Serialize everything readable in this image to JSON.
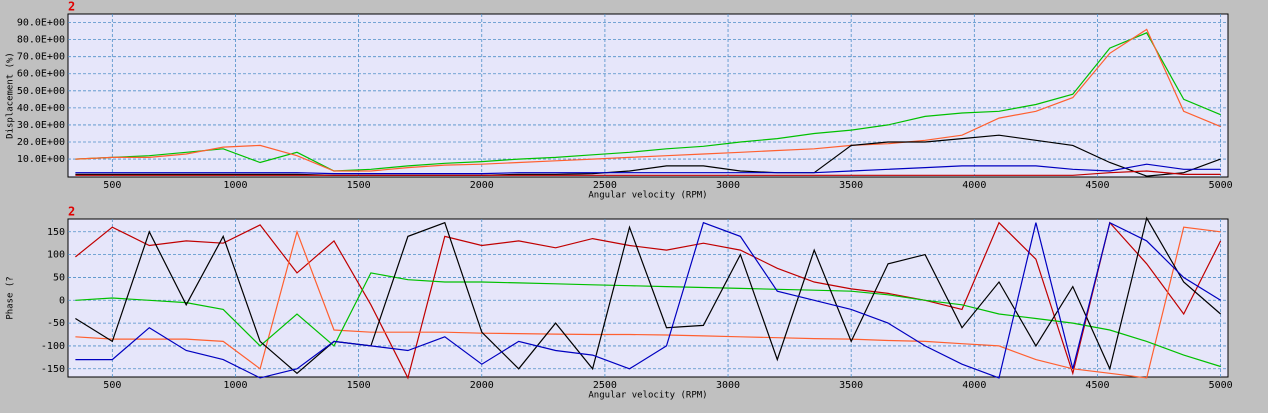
{
  "chart_data": [
    {
      "type": "line",
      "corner_label": "2",
      "xlabel": "Angular velocity (RPM)",
      "ylabel": "Displacement (%)",
      "xlim": [
        320,
        5030
      ],
      "ylim": [
        -0.5,
        95
      ],
      "grid": true,
      "xticks": [
        500,
        1000,
        1500,
        2000,
        2500,
        3000,
        3500,
        4000,
        4500,
        5000
      ],
      "yticks": [
        {
          "value": 10,
          "label": "10.0E+00"
        },
        {
          "value": 20,
          "label": "20.0E+00"
        },
        {
          "value": 30,
          "label": "30.0E+00"
        },
        {
          "value": 40,
          "label": "40.0E+00"
        },
        {
          "value": 50,
          "label": "50.0E+00"
        },
        {
          "value": 60,
          "label": "60.0E+00"
        },
        {
          "value": 70,
          "label": "70.0E+00"
        },
        {
          "value": 80,
          "label": "80.0E+00"
        },
        {
          "value": 90,
          "label": "90.0E+00"
        }
      ],
      "x": [
        350,
        500,
        650,
        800,
        950,
        1100,
        1250,
        1400,
        1550,
        1700,
        1850,
        2000,
        2150,
        2300,
        2450,
        2600,
        2750,
        2900,
        3050,
        3200,
        3350,
        3500,
        3650,
        3800,
        3950,
        4100,
        4250,
        4400,
        4550,
        4700,
        4850,
        5000
      ],
      "series": [
        {
          "color": "#00c000",
          "values": [
            10,
            11,
            12,
            14,
            16,
            8,
            14,
            3,
            4,
            6,
            7.5,
            8.5,
            10,
            11,
            12.5,
            14,
            16,
            17.5,
            20,
            22,
            25,
            27,
            30,
            35,
            37,
            38,
            42,
            48,
            75,
            84,
            45,
            36
          ]
        },
        {
          "color": "#ff6030",
          "values": [
            10,
            11,
            11,
            13,
            17,
            18,
            12,
            3,
            3,
            5,
            6.5,
            7,
            8,
            9,
            10,
            11,
            12,
            13,
            14,
            15,
            16,
            18,
            19,
            21,
            24,
            34,
            38,
            46,
            72,
            86,
            38,
            29
          ]
        },
        {
          "color": "#000000",
          "values": [
            1,
            1,
            1,
            1,
            1,
            1,
            1,
            0.5,
            0.5,
            0.5,
            0.5,
            0.5,
            1,
            1,
            1.5,
            3,
            6,
            6,
            3,
            2,
            2,
            18,
            20,
            20,
            22,
            24,
            21,
            18,
            8,
            0,
            2,
            10
          ]
        },
        {
          "color": "#0000c0",
          "values": [
            2,
            2,
            2,
            2,
            2,
            2,
            2,
            1.5,
            1.5,
            1.5,
            1.5,
            1.5,
            2,
            2,
            2,
            2,
            2,
            2,
            2,
            2,
            2,
            3,
            4,
            5,
            6,
            6,
            6,
            4,
            3,
            7,
            4,
            4
          ]
        },
        {
          "color": "#c00000",
          "values": [
            0.5,
            0.5,
            0.5,
            0.5,
            0.5,
            0.5,
            0.5,
            0.5,
            0.5,
            0.5,
            0.5,
            0.5,
            0.5,
            0.5,
            0.5,
            0.5,
            0.5,
            0.5,
            0.5,
            0.5,
            0.5,
            0.5,
            0.5,
            0.5,
            0.5,
            0.5,
            0.5,
            0.5,
            2,
            3,
            1,
            1
          ]
        }
      ]
    },
    {
      "type": "line",
      "corner_label": "2",
      "xlabel": "Angular velocity (RPM)",
      "ylabel": "Phase (?",
      "xlim": [
        320,
        5030
      ],
      "ylim": [
        -168,
        178
      ],
      "grid": true,
      "xticks": [
        500,
        1000,
        1500,
        2000,
        2500,
        3000,
        3500,
        4000,
        4500,
        5000
      ],
      "yticks": [
        -150,
        -100,
        -50,
        0,
        50,
        100,
        150
      ],
      "x": [
        350,
        500,
        650,
        800,
        950,
        1100,
        1250,
        1400,
        1550,
        1700,
        1850,
        2000,
        2150,
        2300,
        2450,
        2600,
        2750,
        2900,
        3050,
        3200,
        3350,
        3500,
        3650,
        3800,
        3950,
        4100,
        4250,
        4400,
        4550,
        4700,
        4850,
        5000
      ],
      "series": [
        {
          "color": "#c00000",
          "values": [
            95,
            160,
            120,
            130,
            125,
            165,
            60,
            130,
            -10,
            -170,
            140,
            120,
            130,
            115,
            135,
            120,
            110,
            125,
            110,
            70,
            40,
            25,
            15,
            0,
            -20,
            170,
            90,
            -160,
            170,
            80,
            -30,
            130
          ]
        },
        {
          "color": "#ff6030",
          "values": [
            -80,
            -85,
            -85,
            -85,
            -90,
            -150,
            150,
            -65,
            -70,
            -70,
            -70,
            -72,
            -73,
            -74,
            -75,
            -75,
            -76,
            -78,
            -80,
            -82,
            -84,
            -85,
            -88,
            -90,
            -95,
            -100,
            -130,
            -150,
            -160,
            -170,
            160,
            150
          ]
        },
        {
          "color": "#00c000",
          "values": [
            0,
            5,
            0,
            -5,
            -20,
            -100,
            -30,
            -100,
            60,
            45,
            40,
            40,
            38,
            36,
            34,
            32,
            30,
            28,
            26,
            24,
            22,
            20,
            12,
            0,
            -10,
            -30,
            -40,
            -50,
            -65,
            -90,
            -120,
            -145
          ]
        },
        {
          "color": "#000000",
          "values": [
            -40,
            -90,
            150,
            -10,
            140,
            -90,
            -160,
            -90,
            -100,
            140,
            170,
            -70,
            -150,
            -50,
            -150,
            160,
            -60,
            -55,
            100,
            -130,
            110,
            -90,
            80,
            100,
            -60,
            40,
            -100,
            30,
            -150,
            180,
            40,
            -30
          ]
        },
        {
          "color": "#0000c0",
          "values": [
            -130,
            -130,
            -60,
            -110,
            -130,
            -170,
            -150,
            -90,
            -100,
            -110,
            -80,
            -140,
            -90,
            -110,
            -120,
            -150,
            -100,
            170,
            140,
            20,
            0,
            -20,
            -50,
            -100,
            -140,
            -170,
            170,
            -150,
            170,
            130,
            50,
            0
          ]
        }
      ]
    }
  ]
}
